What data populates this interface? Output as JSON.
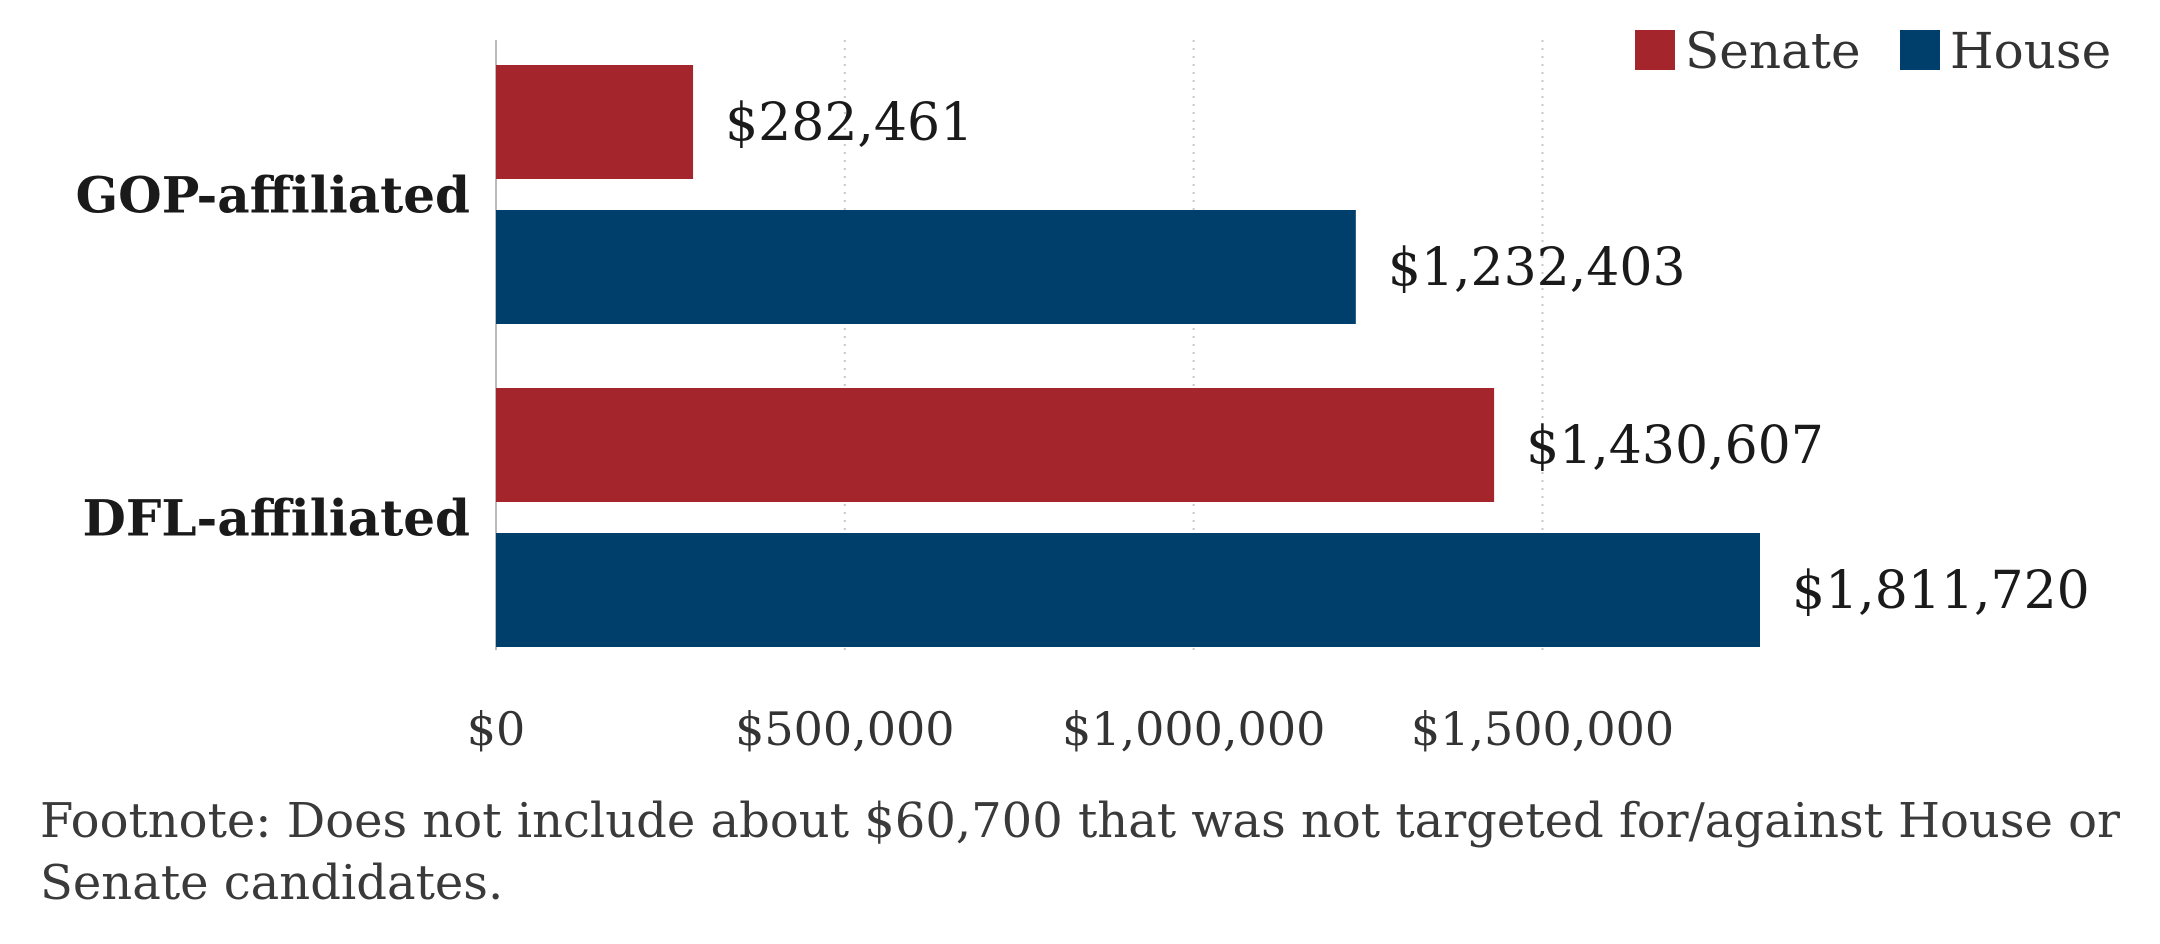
{
  "chart_data": {
    "type": "bar",
    "orientation": "horizontal",
    "categories": [
      "GOP-affiliated",
      "DFL-affiliated"
    ],
    "series": [
      {
        "name": "Senate",
        "color": "#a4262c",
        "values": [
          282461,
          1430607
        ],
        "labels": [
          "$282,461",
          "$1,430,607"
        ]
      },
      {
        "name": "House",
        "color": "#003f6b",
        "values": [
          1232403,
          1811720
        ],
        "labels": [
          "$1,232,403",
          "$1,811,720"
        ]
      }
    ],
    "xlim": [
      0,
      1811720
    ],
    "xticks": [
      0,
      500000,
      1000000,
      1500000
    ],
    "xtick_labels": [
      "$0",
      "$500,000",
      "$1,000,000",
      "$1,500,000"
    ],
    "grid": "vertical dotted",
    "legend": "top-right"
  },
  "footnote": "Footnote: Does not include about $60,700 that was not targeted for/against House or Senate candidates."
}
